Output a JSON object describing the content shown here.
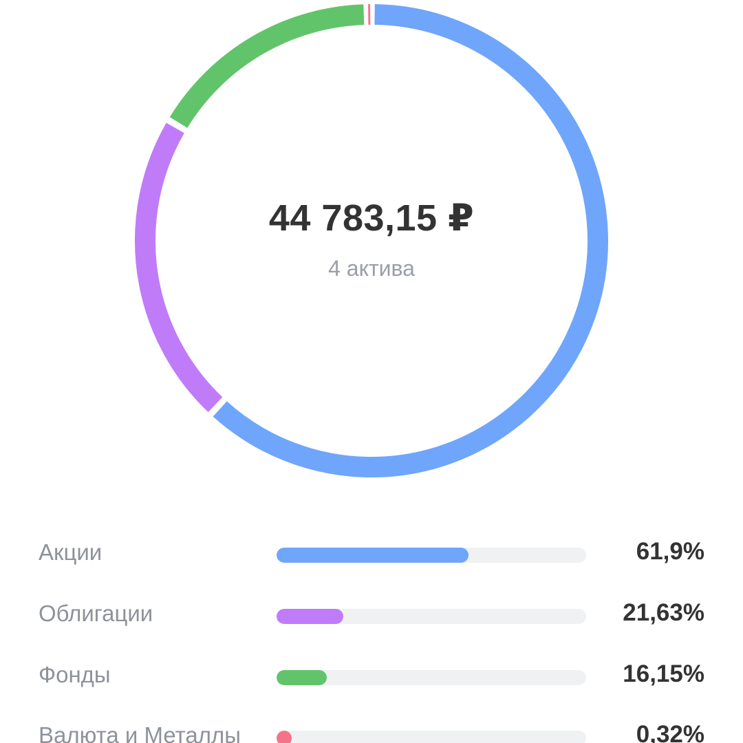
{
  "summary": {
    "total": "44 783,15 ₽",
    "subtitle": "4 актива"
  },
  "chart_data": {
    "type": "pie",
    "style": "donut",
    "categories": [
      "Акции",
      "Облигации",
      "Фонды",
      "Валюта и Металлы"
    ],
    "values": [
      61.9,
      21.63,
      16.15,
      0.32
    ],
    "value_labels": [
      "61,9%",
      "21,63%",
      "16,15%",
      "0,32%"
    ],
    "colors": [
      "#6fa6fb",
      "#c07cf8",
      "#62c46a",
      "#f2738a"
    ],
    "unit": "%"
  },
  "allocation": [
    {
      "label": "Акции",
      "value_label": "61,9%",
      "fraction": 0.619,
      "color": "#6fa6fb"
    },
    {
      "label": "Облигации",
      "value_label": "21,63%",
      "fraction": 0.2163,
      "color": "#c07cf8"
    },
    {
      "label": "Фонды",
      "value_label": "16,15%",
      "fraction": 0.1615,
      "color": "#62c46a"
    },
    {
      "label": "Валюта и Металлы",
      "value_label": "0,32%",
      "fraction": 0.0032,
      "color": "#f2738a"
    }
  ]
}
